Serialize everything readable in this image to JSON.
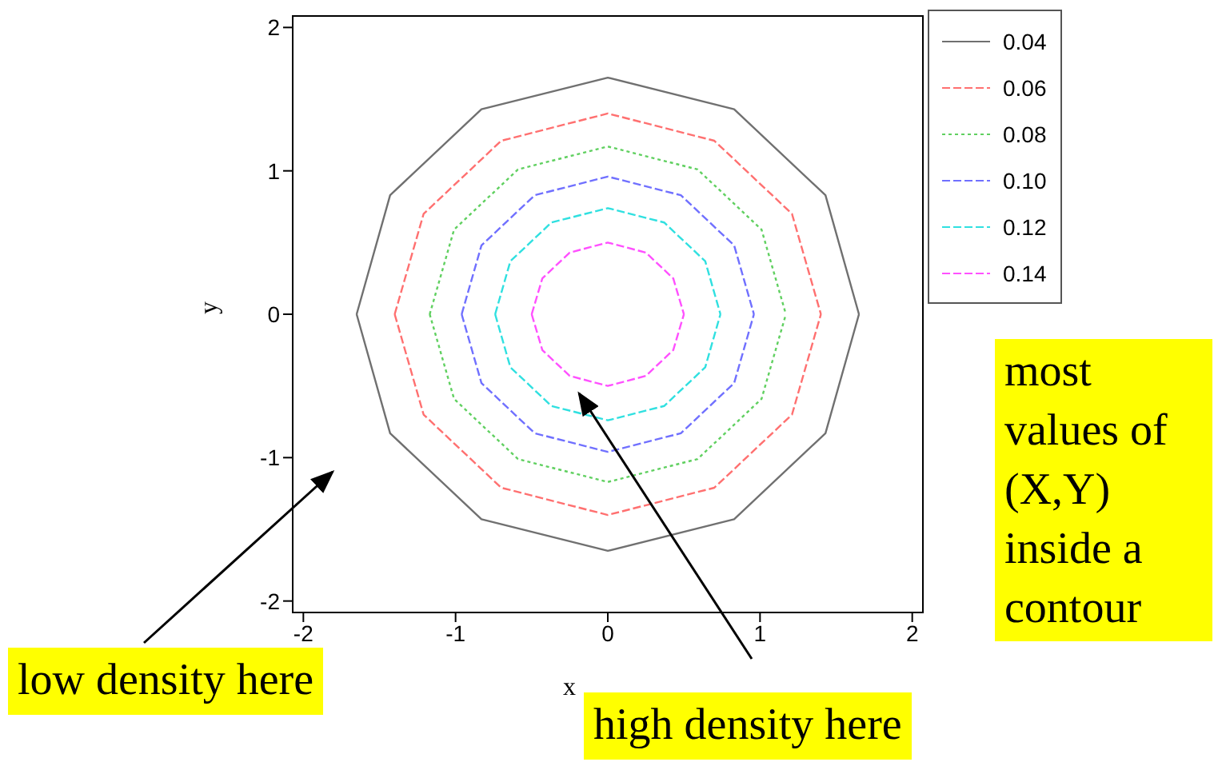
{
  "chart_data": {
    "type": "line",
    "xlabel": "x",
    "ylabel": "y",
    "xlim": [
      -2.07,
      2.07
    ],
    "ylim": [
      -2.08,
      2.08
    ],
    "xticks": [
      -2,
      -1,
      0,
      1,
      2
    ],
    "yticks": [
      -2,
      -1,
      0,
      1,
      2
    ],
    "legend": "top right",
    "grid": false,
    "series": [
      {
        "name": "0.04",
        "color": "#707070",
        "line_style": "solid",
        "x": [
          -1.65,
          -1.43,
          -0.83,
          0,
          0.83,
          1.43,
          1.65
        ],
        "values": [
          0,
          0.83,
          1.43,
          1.65,
          1.43,
          0.83,
          0
        ]
      },
      {
        "color": "#707070",
        "line_style": "solid",
        "x": [
          -1.65,
          -1.43,
          -0.83,
          0,
          0.83,
          1.43,
          1.65
        ],
        "values": [
          0,
          -0.83,
          -1.43,
          -1.65,
          -1.43,
          -0.83,
          0
        ]
      },
      {
        "name": "0.06",
        "color": "#ff7070",
        "line_style": "dashed",
        "x": [
          -1.4,
          -1.21,
          -0.7,
          0,
          0.7,
          1.21,
          1.4
        ],
        "values": [
          0,
          0.7,
          1.21,
          1.4,
          1.21,
          0.7,
          0
        ]
      },
      {
        "color": "#ff7070",
        "line_style": "dashed",
        "x": [
          -1.4,
          -1.21,
          -0.7,
          0,
          0.7,
          1.21,
          1.4
        ],
        "values": [
          0,
          -0.7,
          -1.21,
          -1.4,
          -1.21,
          -0.7,
          0
        ]
      },
      {
        "name": "0.08",
        "color": "#60d060",
        "line_style": "dotted",
        "x": [
          -1.17,
          -1.01,
          -0.59,
          0,
          0.59,
          1.01,
          1.17
        ],
        "values": [
          0,
          0.59,
          1.01,
          1.17,
          1.01,
          0.59,
          0
        ]
      },
      {
        "color": "#60d060",
        "line_style": "dotted",
        "x": [
          -1.17,
          -1.01,
          -0.59,
          0,
          0.59,
          1.01,
          1.17
        ],
        "values": [
          0,
          -0.59,
          -1.01,
          -1.17,
          -1.01,
          -0.59,
          0
        ]
      },
      {
        "name": "0.10",
        "color": "#7070ff",
        "line_style": "dashed",
        "x": [
          -0.96,
          -0.83,
          -0.48,
          0,
          0.48,
          0.83,
          0.96
        ],
        "values": [
          0,
          0.48,
          0.83,
          0.96,
          0.83,
          0.48,
          0
        ]
      },
      {
        "color": "#7070ff",
        "line_style": "dashed",
        "x": [
          -0.96,
          -0.83,
          -0.48,
          0,
          0.48,
          0.83,
          0.96
        ],
        "values": [
          0,
          -0.48,
          -0.83,
          -0.96,
          -0.83,
          -0.48,
          0
        ]
      },
      {
        "name": "0.12",
        "color": "#30e0e0",
        "line_style": "dashed",
        "x": [
          -0.74,
          -0.64,
          -0.37,
          0,
          0.37,
          0.64,
          0.74
        ],
        "values": [
          0,
          0.37,
          0.64,
          0.74,
          0.64,
          0.37,
          0
        ]
      },
      {
        "color": "#30e0e0",
        "line_style": "dashed",
        "x": [
          -0.74,
          -0.64,
          -0.37,
          0,
          0.37,
          0.64,
          0.74
        ],
        "values": [
          0,
          -0.37,
          -0.64,
          -0.74,
          -0.64,
          -0.37,
          0
        ]
      },
      {
        "name": "0.14",
        "color": "#ff50ff",
        "line_style": "dashed",
        "x": [
          -0.5,
          -0.43,
          -0.25,
          0,
          0.25,
          0.43,
          0.5
        ],
        "values": [
          0,
          0.25,
          0.43,
          0.5,
          0.43,
          0.25,
          0
        ]
      },
      {
        "color": "#ff50ff",
        "line_style": "dashed",
        "x": [
          -0.5,
          -0.43,
          -0.25,
          0,
          0.25,
          0.43,
          0.5
        ],
        "values": [
          0,
          -0.25,
          -0.43,
          -0.5,
          -0.43,
          -0.25,
          0
        ]
      }
    ],
    "annotations": [
      "low density here",
      "high density here",
      "most values of (X,Y) inside a contour"
    ]
  }
}
